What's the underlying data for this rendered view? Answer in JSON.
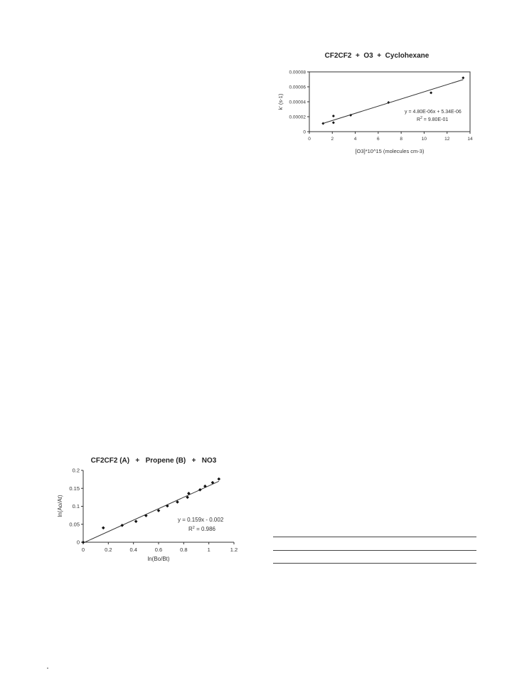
{
  "chart_data": [
    {
      "type": "scatter",
      "title": "CF2CF2  +  O3  +  Cyclohexane",
      "xlabel": "[O3]*10^15  (molecules cm-3)",
      "ylabel": "k' (s-1)",
      "xlim": [
        0,
        14
      ],
      "ylim": [
        0,
        8e-05
      ],
      "xticks": [
        0,
        2,
        4,
        6,
        8,
        10,
        12,
        14
      ],
      "yticks": [
        0,
        2e-05,
        4e-05,
        6e-05,
        8e-05
      ],
      "ytick_labels": [
        "0",
        "0.00002",
        "0.00004",
        "0.00006",
        "0.00008"
      ],
      "points": [
        {
          "x": 1.2,
          "y": 1.1e-05
        },
        {
          "x": 2.1,
          "y": 1.2e-05
        },
        {
          "x": 2.1,
          "y": 2.1e-05
        },
        {
          "x": 3.6,
          "y": 2.2e-05
        },
        {
          "x": 6.9,
          "y": 3.9e-05
        },
        {
          "x": 10.6,
          "y": 5.2e-05
        },
        {
          "x": 13.4,
          "y": 7.2e-05
        }
      ],
      "trendline": {
        "slope": 4.8e-06,
        "intercept": 5.34e-06
      },
      "trendline_range": [
        1.2,
        13.4
      ],
      "equation": "y = 4.80E-06x + 5.34E-06",
      "r2_label": "R",
      "r2_value": " = 9.80E-01",
      "grid": false
    },
    {
      "type": "scatter",
      "title": "CF2CF2 (A)   +   Propene (B)   +   NO3",
      "xlabel": "ln(Bo/Bt)",
      "ylabel": "ln(Ao/At)",
      "xlim": [
        0,
        1.2
      ],
      "ylim": [
        0,
        0.2
      ],
      "xticks": [
        0,
        0.2,
        0.4,
        0.6,
        0.8,
        1.0,
        1.2
      ],
      "xtick_labels": [
        "0",
        "0.2",
        "0.4",
        "0.6",
        "0.8",
        "1",
        "1.2"
      ],
      "yticks": [
        0,
        0.05,
        0.1,
        0.15,
        0.2
      ],
      "ytick_labels": [
        "0",
        "0.05",
        "0.1",
        "0.15",
        "0.2"
      ],
      "points": [
        {
          "x": 0.0,
          "y": 0.0
        },
        {
          "x": 0.16,
          "y": 0.04
        },
        {
          "x": 0.31,
          "y": 0.047
        },
        {
          "x": 0.42,
          "y": 0.058
        },
        {
          "x": 0.5,
          "y": 0.074
        },
        {
          "x": 0.6,
          "y": 0.088
        },
        {
          "x": 0.67,
          "y": 0.101
        },
        {
          "x": 0.75,
          "y": 0.112
        },
        {
          "x": 0.83,
          "y": 0.125
        },
        {
          "x": 0.84,
          "y": 0.136
        },
        {
          "x": 0.93,
          "y": 0.146
        },
        {
          "x": 0.97,
          "y": 0.156
        },
        {
          "x": 1.03,
          "y": 0.166
        },
        {
          "x": 1.08,
          "y": 0.176
        }
      ],
      "trendline": {
        "slope": 0.159,
        "intercept": -0.002
      },
      "trendline_range": [
        0,
        1.08
      ],
      "equation": "y = 0.159x - 0.002",
      "r2_label": "R",
      "r2_value": " = 0.986",
      "grid": false
    }
  ]
}
